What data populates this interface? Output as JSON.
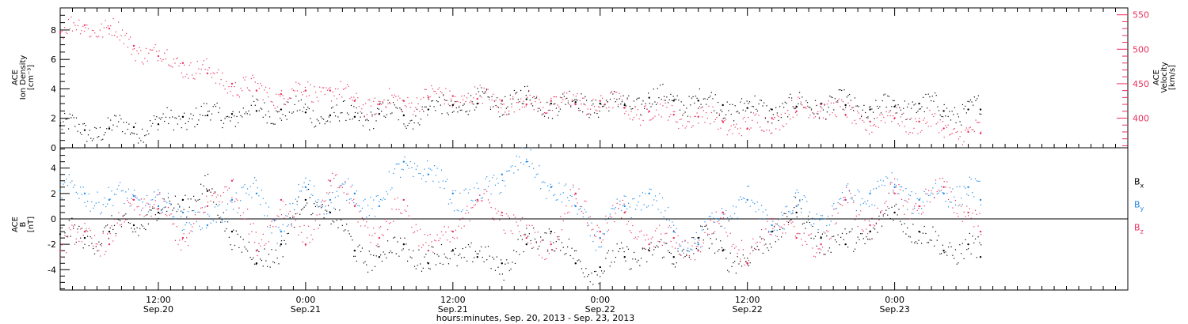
{
  "chart_data": [
    {
      "panel": "top",
      "type": "scatter",
      "left_axis": {
        "label_lines": [
          "ACE",
          "Ion Density",
          "[cm⁻³]"
        ],
        "ylim": [
          0,
          9.5
        ],
        "ticks": [
          0,
          2,
          4,
          6,
          8
        ],
        "tick_labels": [
          "0",
          "2",
          "4",
          "6",
          "8"
        ]
      },
      "right_axis": {
        "label_lines": [
          "ACE",
          "Velocity",
          "[km/s]"
        ],
        "ylim": [
          357,
          560
        ],
        "ticks": [
          400,
          450,
          500,
          550
        ],
        "tick_labels": [
          "400",
          "450",
          "500",
          "550"
        ],
        "color": "#e8305c"
      },
      "series": [
        {
          "key": "density",
          "axis": "left",
          "color": "#000000",
          "x": [
            0,
            2,
            4,
            6,
            8,
            10,
            12,
            14,
            16,
            18,
            20,
            22,
            24,
            26,
            28,
            30,
            32,
            34,
            36,
            38,
            40,
            42,
            44,
            46,
            48,
            50,
            52,
            54,
            56,
            58,
            60,
            62,
            64,
            66,
            68,
            70,
            72,
            74,
            75
          ],
          "y": [
            1.5,
            1.2,
            1.3,
            1.4,
            1.6,
            2.1,
            2.2,
            2.3,
            2.5,
            2.6,
            2.4,
            2.2,
            2.1,
            2.3,
            2.2,
            2.6,
            2.9,
            3.0,
            3.2,
            3.3,
            3.0,
            3.1,
            3.0,
            2.9,
            3.4,
            3.2,
            3.2,
            2.9,
            2.7,
            2.6,
            2.8,
            3.0,
            2.9,
            2.6,
            2.8,
            3.0,
            2.5,
            2.6,
            2.6
          ]
        },
        {
          "key": "velocity",
          "axis": "right",
          "color": "#e8305c",
          "x": [
            0,
            2,
            4,
            6,
            8,
            10,
            12,
            14,
            16,
            18,
            20,
            22,
            24,
            26,
            28,
            30,
            32,
            34,
            36,
            38,
            40,
            42,
            44,
            46,
            48,
            50,
            52,
            54,
            56,
            58,
            60,
            62,
            64,
            66,
            68,
            70,
            72,
            74,
            75
          ],
          "y": [
            525,
            535,
            530,
            505,
            490,
            480,
            465,
            450,
            440,
            435,
            440,
            440,
            425,
            420,
            425,
            430,
            432,
            428,
            425,
            420,
            425,
            420,
            425,
            415,
            410,
            405,
            402,
            395,
            385,
            400,
            410,
            420,
            405,
            395,
            400,
            395,
            385,
            380,
            378
          ]
        }
      ]
    },
    {
      "panel": "bottom",
      "type": "scatter",
      "left_axis": {
        "label_lines": [
          "ACE",
          "B",
          "[nT]"
        ],
        "ylim": [
          -5.6,
          5.6
        ],
        "ticks": [
          -4,
          -2,
          0,
          2,
          4
        ],
        "tick_labels": [
          "-4",
          "-2",
          "0",
          "2",
          "4"
        ]
      },
      "zero_line": true,
      "series": [
        {
          "key": "bx",
          "name": "Bx",
          "color": "#000000",
          "x": [
            0,
            2,
            4,
            6,
            8,
            10,
            12,
            14,
            16,
            18,
            20,
            22,
            24,
            26,
            28,
            30,
            32,
            34,
            36,
            38,
            40,
            42,
            44,
            46,
            48,
            50,
            52,
            54,
            56,
            58,
            60,
            62,
            64,
            66,
            68,
            70,
            72,
            74,
            75
          ],
          "y": [
            -1.2,
            -1.5,
            -1.0,
            -0.5,
            0.5,
            1.5,
            2.2,
            -1.0,
            -3.5,
            -2.0,
            1.5,
            0.5,
            -2.5,
            -3.0,
            -2.0,
            -3.5,
            -2.5,
            -3.0,
            -3.5,
            -2.0,
            -1.0,
            -3.5,
            -3.8,
            -3.0,
            -2.5,
            -3.0,
            -1.5,
            -2.5,
            -3.5,
            -1.0,
            0.5,
            -1.5,
            -2.0,
            -1.0,
            0.5,
            -1.0,
            -2.5,
            -2.0,
            -3.0
          ]
        },
        {
          "key": "by",
          "name": "By",
          "color": "#1e88e5",
          "x": [
            0,
            2,
            4,
            6,
            8,
            10,
            12,
            14,
            16,
            18,
            20,
            22,
            24,
            26,
            28,
            30,
            32,
            34,
            36,
            38,
            40,
            42,
            44,
            46,
            48,
            50,
            52,
            54,
            56,
            58,
            60,
            62,
            64,
            66,
            68,
            70,
            72,
            74,
            75
          ],
          "y": [
            2.2,
            2.0,
            1.5,
            1.8,
            1.0,
            0.5,
            -0.5,
            1.5,
            2.0,
            -1.0,
            2.5,
            1.5,
            2.0,
            1.0,
            4.5,
            3.5,
            2.0,
            1.5,
            3.5,
            4.5,
            2.5,
            1.0,
            -1.5,
            1.0,
            2.0,
            -1.0,
            -2.0,
            0.5,
            1.5,
            -0.5,
            1.0,
            0.0,
            1.5,
            2.0,
            2.5,
            1.5,
            2.0,
            2.5,
            1.5
          ]
        },
        {
          "key": "bz",
          "name": "Bz",
          "color": "#e8305c",
          "x": [
            0,
            2,
            4,
            6,
            8,
            10,
            12,
            14,
            16,
            18,
            20,
            22,
            24,
            26,
            28,
            30,
            32,
            34,
            36,
            38,
            40,
            42,
            44,
            46,
            48,
            50,
            52,
            54,
            56,
            58,
            60,
            62,
            64,
            66,
            68,
            70,
            72,
            74,
            75
          ],
          "y": [
            -2.5,
            -1.0,
            -2.0,
            1.5,
            0.8,
            -1.5,
            1.0,
            3.0,
            -2.5,
            1.5,
            -2.0,
            3.0,
            1.0,
            -1.5,
            1.5,
            -2.5,
            -1.0,
            1.5,
            0.5,
            -1.5,
            -2.0,
            2.0,
            -1.0,
            0.5,
            -2.0,
            -1.5,
            -2.5,
            0.5,
            -3.5,
            0.0,
            -1.5,
            -2.0,
            1.5,
            -0.5,
            2.0,
            1.0,
            2.5,
            0.5,
            -1.0
          ]
        }
      ],
      "legend": {
        "placement": "right",
        "entries": [
          {
            "label": "B",
            "sub": "x",
            "color": "#000000"
          },
          {
            "label": "B",
            "sub": "y",
            "color": "#1e88e5"
          },
          {
            "label": "B",
            "sub": "z",
            "color": "#e8305c"
          }
        ]
      }
    }
  ],
  "x_axis": {
    "unit": "hours",
    "xlim": [
      0,
      87
    ],
    "major_ticks": [
      {
        "x": 8,
        "line1": "12:00",
        "line2": "Sep.20"
      },
      {
        "x": 20,
        "line1": "0:00",
        "line2": "Sep.21"
      },
      {
        "x": 32,
        "line1": "12:00",
        "line2": "Sep.21"
      },
      {
        "x": 44,
        "line1": "0:00",
        "line2": "Sep.22"
      },
      {
        "x": 56,
        "line1": "12:00",
        "line2": "Sep.22"
      },
      {
        "x": 68,
        "line1": "0:00",
        "line2": "Sep.23"
      }
    ],
    "minor_step": 1,
    "title": "hours:minutes, Sep. 20, 2013 - Sep. 23, 2013"
  },
  "colors": {
    "frame": "#000000",
    "velocity_axis": "#e8305c"
  }
}
